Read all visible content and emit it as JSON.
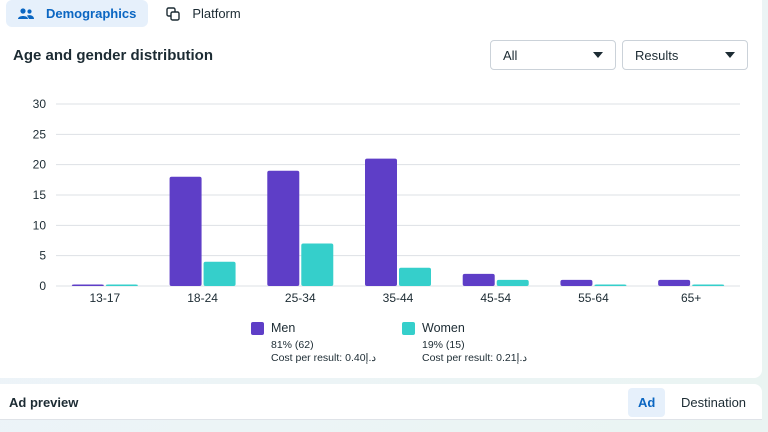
{
  "tabs": [
    {
      "label": "Demographics",
      "icon": "people-icon",
      "active": true
    },
    {
      "label": "Platform",
      "icon": "copy-icon",
      "active": false
    }
  ],
  "section": {
    "title": "Age and gender distribution"
  },
  "filters": {
    "audience": "All",
    "metric": "Results"
  },
  "chart_data": {
    "type": "bar",
    "categories": [
      "13-17",
      "18-24",
      "25-34",
      "35-44",
      "45-54",
      "55-64",
      "65+"
    ],
    "series": [
      {
        "name": "Men",
        "color": "#5e3ec7",
        "values": [
          0,
          18,
          19,
          21,
          2,
          1,
          1
        ]
      },
      {
        "name": "Women",
        "color": "#35cfcb",
        "values": [
          0,
          4,
          7,
          3,
          1,
          0,
          0
        ]
      }
    ],
    "yticks": [
      "0",
      "5",
      "10",
      "15",
      "20",
      "25",
      "30"
    ],
    "ylim": [
      0,
      30
    ],
    "grid": true,
    "legend_position": "bottom"
  },
  "legend": [
    {
      "name": "Men",
      "share": "81% (62)",
      "cost": "Cost per result: 0.40د.إ",
      "color": "#5e3ec7"
    },
    {
      "name": "Women",
      "share": "19% (15)",
      "cost": "Cost per result: 0.21د.إ",
      "color": "#35cfcb"
    }
  ],
  "ad_preview": {
    "title": "Ad preview",
    "tabs": [
      "Ad",
      "Destination"
    ]
  }
}
